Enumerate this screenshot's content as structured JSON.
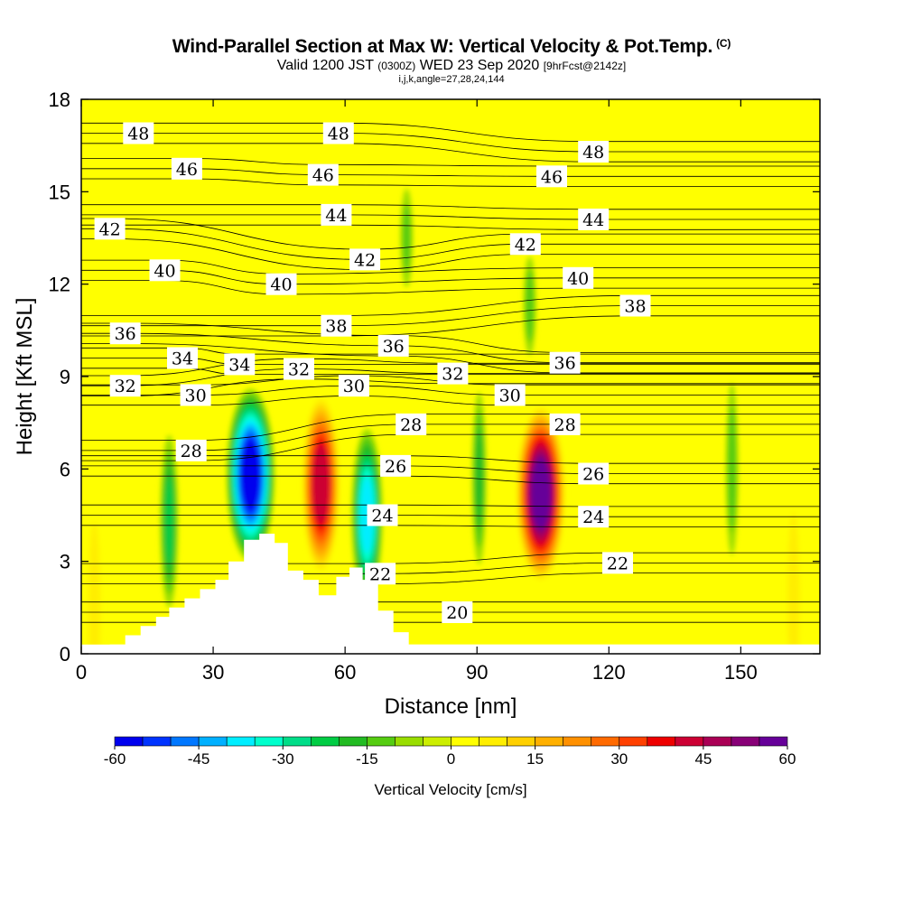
{
  "title": "Wind-Parallel Section at Max W: Vertical Velocity & Pot.Temp.",
  "title_mark": "(C)",
  "subtitle_valid": "Valid 1200 JST",
  "subtitle_utc": "(0300Z)",
  "subtitle_date": "WED 23 Sep 2020",
  "subtitle_fcst": "[9hrFcst@2142z]",
  "subtitle_indices": "i,j,k,angle=27,28,24,144",
  "chart_data": {
    "type": "heatmap",
    "xlabel": "Distance [nm]",
    "ylabel": "Height [Kft MSL]",
    "xlim": [
      0,
      168
    ],
    "ylim": [
      0,
      18
    ],
    "xticks": [
      "0",
      "30",
      "60",
      "90",
      "120",
      "150"
    ],
    "yticks": [
      "0",
      "3",
      "6",
      "9",
      "12",
      "15",
      "18"
    ],
    "colorbar": {
      "label": "Vertical Velocity [cm/s]",
      "range": [
        -60,
        60
      ],
      "ticks": [
        "-60",
        "-45",
        "-30",
        "-15",
        "0",
        "15",
        "30",
        "45",
        "60"
      ],
      "colors": [
        "#0000ee",
        "#0033ff",
        "#0077ff",
        "#00b0ff",
        "#00eeff",
        "#00ffcc",
        "#00dd88",
        "#00cc44",
        "#22bb22",
        "#55cc11",
        "#99dd00",
        "#ccee00",
        "#ffff00",
        "#ffee00",
        "#ffd000",
        "#ffb000",
        "#ff9000",
        "#ff6a00",
        "#ff4000",
        "#ee0000",
        "#cc0033",
        "#aa0055",
        "#880077",
        "#660099"
      ]
    },
    "vertical_velocity_features": [
      {
        "x": 20,
        "y": 4.3,
        "w": -20,
        "kind": "downdraft"
      },
      {
        "x": 38.5,
        "y": 5.8,
        "w": -55,
        "kind": "downdraft"
      },
      {
        "x": 54.5,
        "y": 5.5,
        "w": 42,
        "kind": "updraft"
      },
      {
        "x": 65,
        "y": 4.5,
        "w": -35,
        "kind": "downdraft"
      },
      {
        "x": 90.5,
        "y": 5.7,
        "w": -16,
        "kind": "downdraft"
      },
      {
        "x": 104.5,
        "y": 5.2,
        "w": 55,
        "kind": "updraft"
      },
      {
        "x": 74,
        "y": 13.5,
        "w": -10,
        "kind": "downdraft"
      },
      {
        "x": 102,
        "y": 11.3,
        "w": -12,
        "kind": "downdraft"
      },
      {
        "x": 148,
        "y": 6.0,
        "w": -12,
        "kind": "downdraft"
      },
      {
        "x": 3,
        "y": 1.5,
        "w": 8,
        "kind": "updraft"
      },
      {
        "x": 162,
        "y": 1.8,
        "w": 8,
        "kind": "updraft"
      }
    ],
    "terrain_profile": {
      "x": [
        0,
        6.5,
        6.5,
        10,
        10,
        13.5,
        13.5,
        17,
        17,
        20,
        20,
        23.5,
        23.5,
        27,
        27,
        30.5,
        30.5,
        33.5,
        33.5,
        37,
        37,
        40.5,
        40.5,
        44,
        44,
        47,
        47,
        50.5,
        50.5,
        54,
        54,
        58,
        58,
        61,
        61,
        64,
        64,
        67.5,
        67.5,
        71,
        71,
        74.5,
        74.5,
        168
      ],
      "height_kft": [
        0,
        0,
        0.3,
        0.3,
        0.6,
        0.6,
        0.9,
        0.9,
        1.2,
        1.2,
        1.5,
        1.5,
        1.8,
        1.8,
        2.1,
        2.1,
        2.4,
        2.4,
        3.0,
        3.0,
        3.7,
        3.7,
        3.9,
        3.9,
        3.6,
        3.6,
        2.7,
        2.7,
        2.4,
        2.4,
        1.9,
        1.9,
        2.5,
        2.5,
        2.8,
        2.8,
        2.4,
        2.4,
        1.4,
        1.4,
        0.7,
        0.7,
        0.3,
        0.3
      ]
    },
    "potential_temperature_contours": {
      "levels": [
        20,
        22,
        24,
        26,
        28,
        30,
        32,
        34,
        36,
        38,
        40,
        42,
        44,
        46,
        48
      ],
      "labels": [
        {
          "text": "48",
          "x": 13.0,
          "y": 16.9
        },
        {
          "text": "48",
          "x": 58.5,
          "y": 16.9
        },
        {
          "text": "48",
          "x": 116.5,
          "y": 16.3
        },
        {
          "text": "46",
          "x": 24.0,
          "y": 15.75
        },
        {
          "text": "46",
          "x": 55.0,
          "y": 15.55
        },
        {
          "text": "46",
          "x": 107.0,
          "y": 15.5
        },
        {
          "text": "44",
          "x": 58.0,
          "y": 14.25
        },
        {
          "text": "44",
          "x": 116.5,
          "y": 14.1
        },
        {
          "text": "42",
          "x": 6.5,
          "y": 13.8
        },
        {
          "text": "42",
          "x": 64.5,
          "y": 12.8
        },
        {
          "text": "42",
          "x": 101.0,
          "y": 13.3
        },
        {
          "text": "40",
          "x": 19.0,
          "y": 12.45
        },
        {
          "text": "40",
          "x": 45.5,
          "y": 12.0
        },
        {
          "text": "40",
          "x": 113.0,
          "y": 12.2
        },
        {
          "text": "38",
          "x": 58.0,
          "y": 10.65
        },
        {
          "text": "38",
          "x": 126.0,
          "y": 11.3
        },
        {
          "text": "36",
          "x": 10.0,
          "y": 10.4
        },
        {
          "text": "36",
          "x": 71.0,
          "y": 10.0
        },
        {
          "text": "36",
          "x": 110.0,
          "y": 9.45
        },
        {
          "text": "34",
          "x": 23.0,
          "y": 9.6
        },
        {
          "text": "34",
          "x": 36.0,
          "y": 9.4
        },
        {
          "text": "32",
          "x": 10.0,
          "y": 8.7
        },
        {
          "text": "32",
          "x": 49.5,
          "y": 9.25
        },
        {
          "text": "32",
          "x": 84.5,
          "y": 9.1
        },
        {
          "text": "30",
          "x": 26.0,
          "y": 8.4
        },
        {
          "text": "30",
          "x": 62.0,
          "y": 8.7
        },
        {
          "text": "30",
          "x": 97.5,
          "y": 8.4
        },
        {
          "text": "28",
          "x": 25.0,
          "y": 6.6
        },
        {
          "text": "28",
          "x": 75.0,
          "y": 7.45
        },
        {
          "text": "28",
          "x": 110.0,
          "y": 7.45
        },
        {
          "text": "26",
          "x": 71.5,
          "y": 6.1
        },
        {
          "text": "26",
          "x": 116.5,
          "y": 5.85
        },
        {
          "text": "24",
          "x": 68.5,
          "y": 4.5
        },
        {
          "text": "24",
          "x": 116.5,
          "y": 4.45
        },
        {
          "text": "22",
          "x": 68.0,
          "y": 2.6
        },
        {
          "text": "22",
          "x": 122.0,
          "y": 2.95
        },
        {
          "text": "20",
          "x": 85.5,
          "y": 1.35
        }
      ]
    }
  }
}
